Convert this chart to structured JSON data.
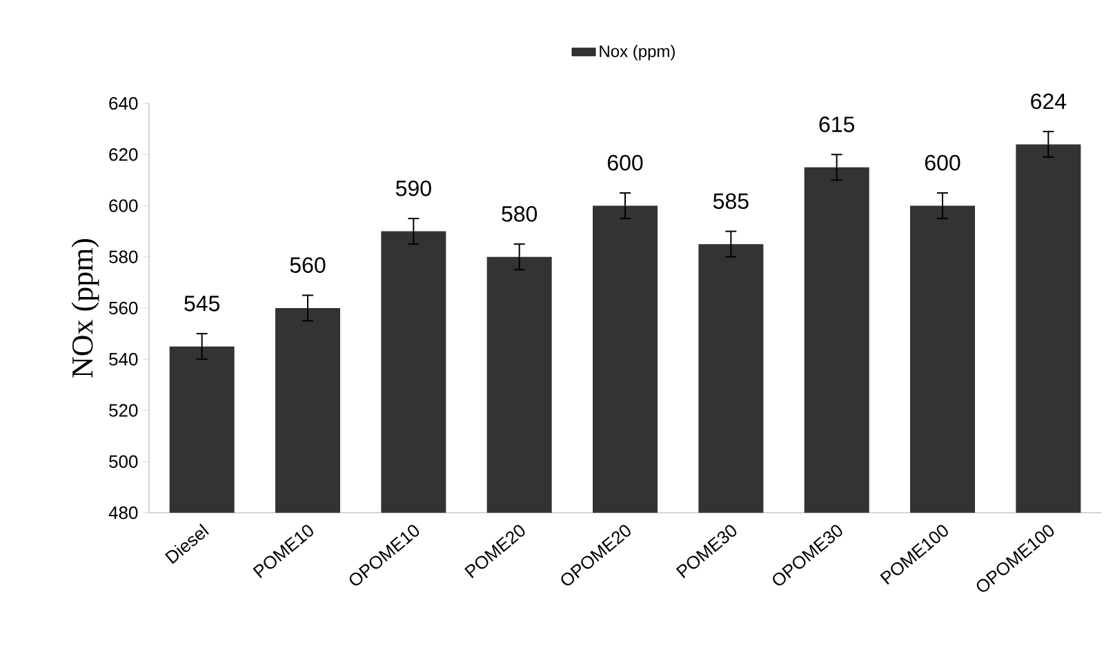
{
  "chart_data": {
    "type": "bar",
    "ylabel": "NOx (ppm)",
    "categories": [
      "Diesel",
      "POME10",
      "OPOME10",
      "POME20",
      "OPOME20",
      "POME30",
      "OPOME30",
      "POME100",
      "OPOME100"
    ],
    "series": [
      {
        "name": "Nox (ppm)",
        "color": "#333333",
        "values": [
          545,
          560,
          590,
          580,
          600,
          585,
          615,
          600,
          624
        ],
        "errors": [
          5,
          5,
          5,
          5,
          5,
          5,
          5,
          5,
          5
        ]
      }
    ],
    "ylim": [
      480,
      640
    ],
    "yticks": [
      480,
      500,
      520,
      540,
      560,
      580,
      600,
      620,
      640
    ],
    "data_labels": true,
    "legend": "top"
  }
}
